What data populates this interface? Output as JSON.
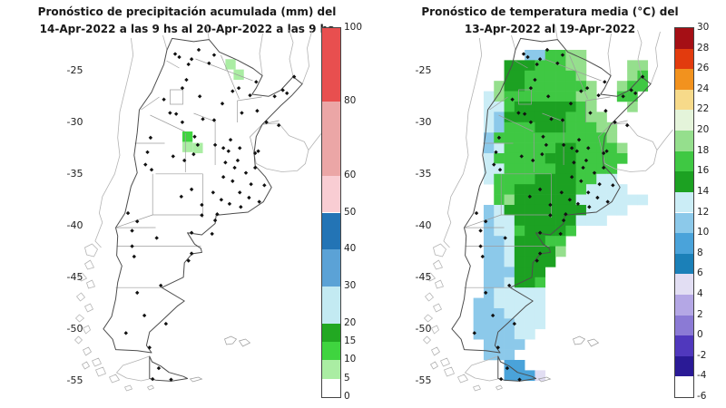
{
  "chart_data": [
    {
      "type": "heatmap",
      "region_axis": "latitude",
      "title_line1": "Pronóstico de precipitación acumulada (mm) del",
      "title_line2": "14-Apr-2022 a las 9 hs al 20-Apr-2022 a las 9 hs",
      "unit": "mm",
      "lat_ticks": [
        -25,
        -30,
        -35,
        -40,
        -45,
        -50,
        -55
      ],
      "colorbar": {
        "min": 0,
        "max": 100,
        "tick_values": [
          100,
          80,
          60,
          50,
          40,
          30,
          20,
          15,
          10,
          5,
          0
        ],
        "segments": [
          {
            "from": 0,
            "to": 5,
            "color": "#ffffff"
          },
          {
            "from": 5,
            "to": 10,
            "color": "#aaeda3"
          },
          {
            "from": 10,
            "to": 15,
            "color": "#3fd43f"
          },
          {
            "from": 15,
            "to": 20,
            "color": "#22a822"
          },
          {
            "from": 20,
            "to": 30,
            "color": "#c3eaf2"
          },
          {
            "from": 30,
            "to": 40,
            "color": "#5ba2d6"
          },
          {
            "from": 40,
            "to": 50,
            "color": "#2374b5"
          },
          {
            "from": 50,
            "to": 60,
            "color": "#f9cdd3"
          },
          {
            "from": 60,
            "to": 80,
            "color": "#eba6a6"
          },
          {
            "from": 80,
            "to": 100,
            "color": "#e84f4f"
          }
        ]
      },
      "cells": [
        {
          "lon": -61.2,
          "lat": -23.9,
          "value_mm": "5-10",
          "color": "#aaeda3"
        },
        {
          "lon": -60.4,
          "lat": -24.9,
          "value_mm": "5-10",
          "color": "#aaeda3"
        },
        {
          "lon": -65.4,
          "lat": -30.9,
          "value_mm": "10-15",
          "color": "#3fd43f"
        },
        {
          "lon": -65.4,
          "lat": -31.9,
          "value_mm": "5-10",
          "color": "#aaeda3"
        },
        {
          "lon": -64.4,
          "lat": -32.0,
          "value_mm": "5-10",
          "color": "#aaeda3"
        }
      ]
    },
    {
      "type": "heatmap",
      "region_axis": "latitude",
      "title_line1": "Pronóstico de temperatura media (°C) del",
      "title_line2": "13-Apr-2022 al 19-Apr-2022",
      "unit": "°C",
      "lat_ticks": [
        -25,
        -30,
        -35,
        -40,
        -45,
        -50,
        -55
      ],
      "colorbar": {
        "min": -6,
        "max": 30,
        "tick_values": [
          30,
          28,
          26,
          24,
          22,
          20,
          18,
          16,
          14,
          12,
          10,
          8,
          6,
          4,
          2,
          0,
          -2,
          -4,
          -6
        ],
        "segments": [
          {
            "from": -6,
            "to": -4,
            "color": "#ffffff"
          },
          {
            "from": -4,
            "to": -2,
            "color": "#2a1a96"
          },
          {
            "from": -2,
            "to": 0,
            "color": "#5038bd"
          },
          {
            "from": 0,
            "to": 2,
            "color": "#8b7ad5"
          },
          {
            "from": 2,
            "to": 4,
            "color": "#b4a7e5"
          },
          {
            "from": 4,
            "to": 6,
            "color": "#e2def3"
          },
          {
            "from": 6,
            "to": 8,
            "color": "#1b80b8"
          },
          {
            "from": 8,
            "to": 10,
            "color": "#4aa3da"
          },
          {
            "from": 10,
            "to": 12,
            "color": "#8cc9ea"
          },
          {
            "from": 12,
            "to": 14,
            "color": "#cbedf6"
          },
          {
            "from": 14,
            "to": 16,
            "color": "#1ca122"
          },
          {
            "from": 16,
            "to": 18,
            "color": "#3fc843"
          },
          {
            "from": 18,
            "to": 20,
            "color": "#95df8d"
          },
          {
            "from": 20,
            "to": 22,
            "color": "#e4f4da"
          },
          {
            "from": 22,
            "to": 24,
            "color": "#f7da8a"
          },
          {
            "from": 24,
            "to": 26,
            "color": "#f2921e"
          },
          {
            "from": 26,
            "to": 28,
            "color": "#e23b0e"
          },
          {
            "from": 28,
            "to": 30,
            "color": "#a50f15"
          }
        ]
      },
      "raster": {
        "lon0": -74,
        "lat0": -23,
        "cell_deg": 1,
        "palette": {
          "p": "#e4f4da",
          "l": "#95df8d",
          "g": "#3fc843",
          "G": "#1ca122",
          "c": "#cbedf6",
          "b": "#8cc9ea",
          "B": "#4aa3da",
          "v": "#e2def3"
        },
        "palette_values_c": {
          "p": "20-22",
          "l": "18-20",
          "g": "16-18",
          "G": "14-16",
          "c": "12-14",
          "b": "10-12",
          "B": "8-10",
          "v": "4-6"
        },
        "rows": [
          "........bbggll.......",
          "......GGGgggll....ll.",
          "......GGgggggl....lg.",
          ".....lGGggggggl..lgg.",
          "....clgggggggll..gg..",
          "....ccgGGGGGGgl...l..",
          "....cbGGGGGGggll.....",
          "....cbgggGGGgggll....",
          "....bgggggggggggl....",
          "....bcgggggGGggggl...",
          "....cgggggGGGggggg...",
          "....ccgggggGGgggg....",
          "....cggggGGGGggcc....",
          ".....ggGGGGGGgcccc...",
          ".....glGGGGGGccccccc.",
          "....bcGGGGGGGGcccc...",
          "....bccGGGGGGccc.....",
          "....bccgGGGGg........",
          "....bbcGGGgg.........",
          "....bbcGGGGl.........",
          "....bbcGGGG..........",
          "....bbbGGG...........",
          "....bbcGGg...........",
          "....bccccc...........",
          "...bbccccc...........",
          "...bbbcccc...........",
          "...bbbbccc...........",
          "...bbbbcc............",
          "....bbbb.............",
          "....bbb..............",
          "......BB.............",
          "......BBBv..........."
        ]
      }
    }
  ],
  "stations": {
    "marker": "diamond",
    "color": "#111111",
    "points": [
      [
        -63.8,
        -23.0
      ],
      [
        -66.1,
        -23.4
      ],
      [
        -64.5,
        -23.9
      ],
      [
        -65.7,
        -23.7
      ],
      [
        -64.8,
        -24.4
      ],
      [
        -62.3,
        -23.5
      ],
      [
        -62.8,
        -24.3
      ],
      [
        -65.0,
        -25.9
      ],
      [
        -65.4,
        -26.7
      ],
      [
        -63.7,
        -27.5
      ],
      [
        -67.2,
        -27.8
      ],
      [
        -66.6,
        -29.1
      ],
      [
        -66.0,
        -29.2
      ],
      [
        -65.4,
        -30.0
      ],
      [
        -59.9,
        -26.7
      ],
      [
        -58.2,
        -26.1
      ],
      [
        -58.8,
        -27.4
      ],
      [
        -56.4,
        -27.5
      ],
      [
        -55.2,
        -27.2
      ],
      [
        -54.5,
        -25.6
      ],
      [
        -55.6,
        -26.9
      ],
      [
        -60.5,
        -27.0
      ],
      [
        -61.5,
        -28.2
      ],
      [
        -63.4,
        -29.7
      ],
      [
        -62.3,
        -29.8
      ],
      [
        -59.6,
        -29.1
      ],
      [
        -58.1,
        -28.9
      ],
      [
        -57.2,
        -30.0
      ],
      [
        -56.0,
        -30.3
      ],
      [
        -68.5,
        -31.5
      ],
      [
        -68.8,
        -32.9
      ],
      [
        -69.0,
        -34.1
      ],
      [
        -68.4,
        -34.6
      ],
      [
        -66.3,
        -33.3
      ],
      [
        -65.2,
        -33.7
      ],
      [
        -64.2,
        -31.4
      ],
      [
        -63.9,
        -32.2
      ],
      [
        -64.3,
        -33.1
      ],
      [
        -62.2,
        -32.2
      ],
      [
        -61.4,
        -32.5
      ],
      [
        -60.9,
        -32.8
      ],
      [
        -60.7,
        -31.7
      ],
      [
        -59.8,
        -32.5
      ],
      [
        -58.3,
        -33.0
      ],
      [
        -58.0,
        -32.8
      ],
      [
        -60.0,
        -33.7
      ],
      [
        -61.2,
        -33.9
      ],
      [
        -60.3,
        -34.4
      ],
      [
        -58.3,
        -34.4
      ],
      [
        -59.2,
        -34.9
      ],
      [
        -61.4,
        -35.3
      ],
      [
        -60.5,
        -35.7
      ],
      [
        -58.7,
        -36.0
      ],
      [
        -57.4,
        -36.1
      ],
      [
        -59.8,
        -36.8
      ],
      [
        -58.9,
        -37.3
      ],
      [
        -57.9,
        -37.7
      ],
      [
        -60.8,
        -37.9
      ],
      [
        -59.7,
        -38.2
      ],
      [
        -61.6,
        -37.5
      ],
      [
        -62.4,
        -36.8
      ],
      [
        -64.5,
        -36.5
      ],
      [
        -65.5,
        -37.2
      ],
      [
        -63.5,
        -38.0
      ],
      [
        -62.0,
        -38.9
      ],
      [
        -70.7,
        -38.8
      ],
      [
        -69.8,
        -39.6
      ],
      [
        -70.3,
        -40.5
      ],
      [
        -67.9,
        -41.2
      ],
      [
        -70.3,
        -42.0
      ],
      [
        -64.5,
        -40.7
      ],
      [
        -63.5,
        -39.0
      ],
      [
        -62.2,
        -39.5
      ],
      [
        -62.5,
        -40.8
      ],
      [
        -64.5,
        -42.7
      ],
      [
        -64.8,
        -43.4
      ],
      [
        -70.1,
        -43.0
      ],
      [
        -67.5,
        -45.8
      ],
      [
        -69.8,
        -46.5
      ],
      [
        -69.1,
        -48.7
      ],
      [
        -67.0,
        -49.5
      ],
      [
        -70.9,
        -50.4
      ],
      [
        -68.6,
        -51.8
      ],
      [
        -68.3,
        -54.85
      ],
      [
        -67.7,
        -53.8
      ],
      [
        -66.5,
        -54.9
      ]
    ]
  }
}
